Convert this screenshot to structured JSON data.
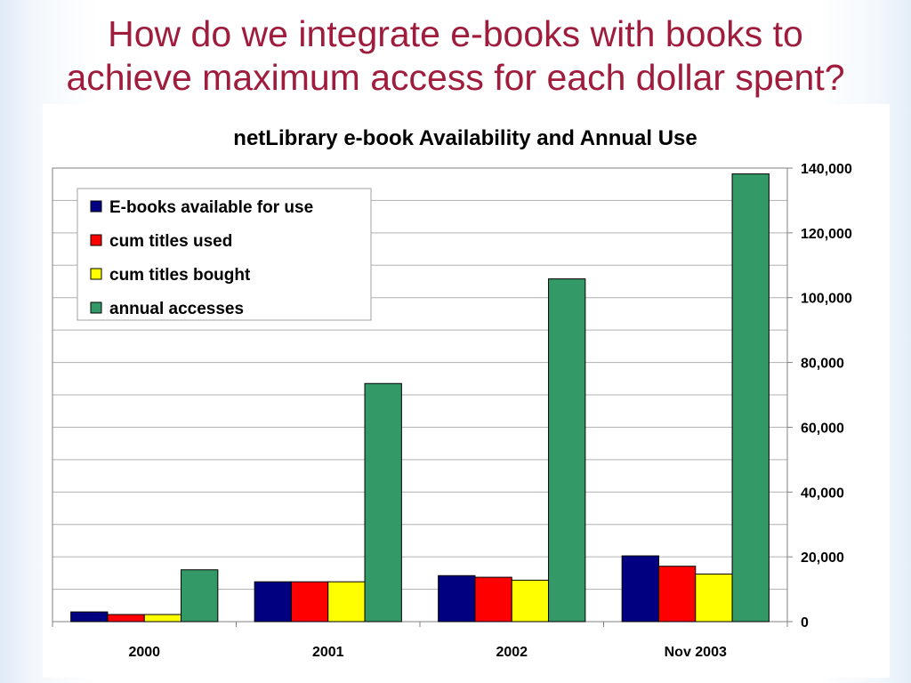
{
  "slide": {
    "title_line1": "How do we integrate e-books with books to",
    "title_line2": "achieve maximum access for each dollar spent?"
  },
  "colors": {
    "title": "#a01c3c",
    "series": [
      "#000080",
      "#ff0000",
      "#ffff00",
      "#339966"
    ]
  },
  "chart_data": {
    "type": "bar",
    "title": "netLibrary e-book Availability and Annual Use",
    "categories": [
      "2000",
      "2001",
      "2002",
      "Nov 2003"
    ],
    "series": [
      {
        "name": "E-books available for use",
        "values": [
          3000,
          12300,
          14200,
          20300
        ]
      },
      {
        "name": "cum titles used",
        "values": [
          2200,
          12300,
          13700,
          17100
        ]
      },
      {
        "name": "cum titles bought",
        "values": [
          2200,
          12300,
          12800,
          14700
        ]
      },
      {
        "name": "annual accesses",
        "values": [
          16000,
          73500,
          105800,
          138200
        ]
      }
    ],
    "ylim": [
      0,
      140000
    ],
    "yticks": [
      0,
      20000,
      40000,
      60000,
      80000,
      100000,
      120000,
      140000
    ],
    "ytick_labels": [
      "0",
      "20,000",
      "40,000",
      "60,000",
      "80,000",
      "100,000",
      "120,000",
      "140,000"
    ],
    "y_axis_side": "right",
    "grid": true,
    "legend_position": "top-left"
  }
}
